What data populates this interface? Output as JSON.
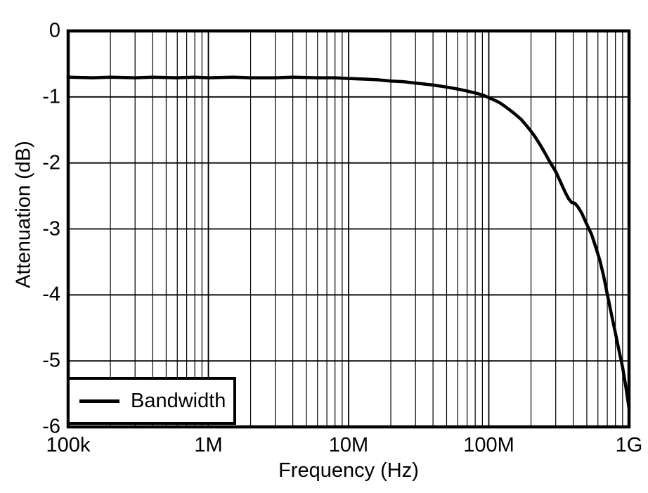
{
  "figure": {
    "background": "#ffffff",
    "ink_color": "#000000"
  },
  "chart_data": {
    "type": "line",
    "xlabel": "Frequency (Hz)",
    "ylabel": "Attenuation (dB)",
    "x_scale": "log",
    "x_range_hz": [
      100000,
      1000000000
    ],
    "y_range_db": [
      -6,
      0
    ],
    "x_ticks": [
      {
        "value": 100000,
        "label": "100k"
      },
      {
        "value": 1000000,
        "label": "1M"
      },
      {
        "value": 10000000,
        "label": "10M"
      },
      {
        "value": 100000000,
        "label": "100M"
      },
      {
        "value": 1000000000,
        "label": "1G"
      }
    ],
    "y_ticks": [
      {
        "value": 0,
        "label": "0"
      },
      {
        "value": -1,
        "label": "-1"
      },
      {
        "value": -2,
        "label": "-2"
      },
      {
        "value": -3,
        "label": "-3"
      },
      {
        "value": -4,
        "label": "-4"
      },
      {
        "value": -5,
        "label": "-5"
      },
      {
        "value": -6,
        "label": "-6"
      }
    ],
    "grid": {
      "major": true,
      "log_minor_x": true,
      "minor_y": false
    },
    "legend": {
      "position": "bottom-left",
      "label": "Bandwidth"
    },
    "series": [
      {
        "name": "Bandwidth",
        "color": "#000000",
        "points": [
          [
            100000,
            -0.7
          ],
          [
            150000,
            -0.71
          ],
          [
            200000,
            -0.7
          ],
          [
            300000,
            -0.71
          ],
          [
            400000,
            -0.7
          ],
          [
            600000,
            -0.71
          ],
          [
            800000,
            -0.7
          ],
          [
            1000000,
            -0.71
          ],
          [
            1500000,
            -0.7
          ],
          [
            2000000,
            -0.71
          ],
          [
            3000000,
            -0.71
          ],
          [
            4000000,
            -0.7
          ],
          [
            6000000,
            -0.71
          ],
          [
            8000000,
            -0.71
          ],
          [
            10000000,
            -0.72
          ],
          [
            13000000,
            -0.73
          ],
          [
            16000000,
            -0.74
          ],
          [
            20000000,
            -0.76
          ],
          [
            25000000,
            -0.77
          ],
          [
            30000000,
            -0.79
          ],
          [
            40000000,
            -0.82
          ],
          [
            50000000,
            -0.85
          ],
          [
            60000000,
            -0.88
          ],
          [
            70000000,
            -0.91
          ],
          [
            80000000,
            -0.94
          ],
          [
            90000000,
            -0.97
          ],
          [
            100000000,
            -1.01
          ],
          [
            110000000,
            -1.05
          ],
          [
            120000000,
            -1.09
          ],
          [
            130000000,
            -1.14
          ],
          [
            150000000,
            -1.24
          ],
          [
            170000000,
            -1.34
          ],
          [
            190000000,
            -1.46
          ],
          [
            210000000,
            -1.58
          ],
          [
            230000000,
            -1.71
          ],
          [
            250000000,
            -1.84
          ],
          [
            270000000,
            -1.97
          ],
          [
            300000000,
            -2.13
          ],
          [
            320000000,
            -2.26
          ],
          [
            350000000,
            -2.44
          ],
          [
            370000000,
            -2.54
          ],
          [
            390000000,
            -2.6
          ],
          [
            410000000,
            -2.61
          ],
          [
            430000000,
            -2.66
          ],
          [
            460000000,
            -2.76
          ],
          [
            500000000,
            -2.93
          ],
          [
            540000000,
            -3.08
          ],
          [
            580000000,
            -3.28
          ],
          [
            620000000,
            -3.48
          ],
          [
            660000000,
            -3.72
          ],
          [
            700000000,
            -3.99
          ],
          [
            750000000,
            -4.3
          ],
          [
            800000000,
            -4.58
          ],
          [
            850000000,
            -4.85
          ],
          [
            900000000,
            -5.1
          ],
          [
            950000000,
            -5.4
          ],
          [
            1000000000,
            -5.72
          ]
        ]
      }
    ]
  }
}
